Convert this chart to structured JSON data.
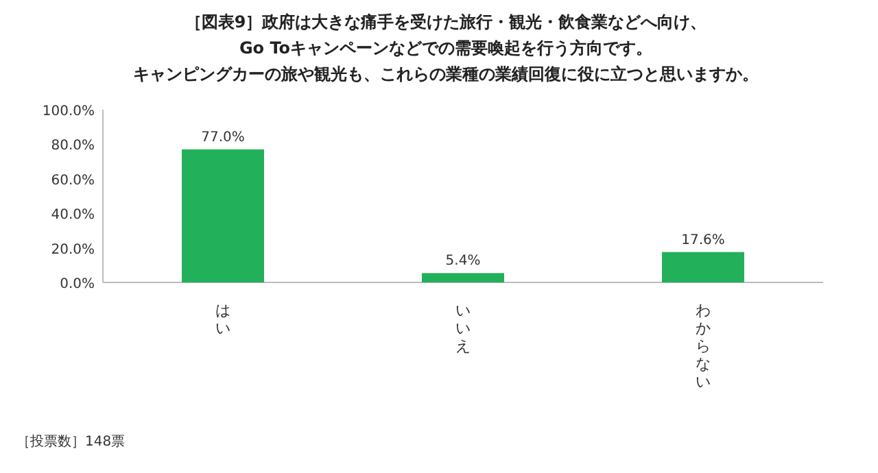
{
  "chart_data": {
    "type": "bar",
    "title": "［図表9］政府は大きな痛手を受けた旅行・観光・飲食業などへ向け、Go Toキャンペーンなどでの需要喚起を行う方向です。キャンピングカーの旅や観光も、これらの業種の業績回復に役に立つと思いますか。",
    "categories": [
      "はい",
      "いいえ",
      "わからない"
    ],
    "values": [
      77.0,
      5.4,
      17.6
    ],
    "value_labels": [
      "77.0%",
      "5.4%",
      "17.6%"
    ],
    "color": "#22b05a",
    "ylim": [
      0,
      100
    ],
    "yticks": [
      {
        "value": 0,
        "label": "0.0%"
      },
      {
        "value": 20,
        "label": "20.0%"
      },
      {
        "value": 40,
        "label": "40.0%"
      },
      {
        "value": 60,
        "label": "60.0%"
      },
      {
        "value": 80,
        "label": "80.0%"
      },
      {
        "value": 100,
        "label": "100.0%"
      }
    ],
    "grid": false,
    "annotations": [
      "［投票数］148票"
    ]
  }
}
